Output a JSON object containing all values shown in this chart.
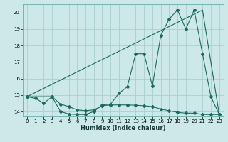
{
  "title": "",
  "xlabel": "Humidex (Indice chaleur)",
  "xlim": [
    -0.5,
    23.5
  ],
  "ylim": [
    13.7,
    20.5
  ],
  "yticks": [
    14,
    15,
    16,
    17,
    18,
    19,
    20
  ],
  "xticks": [
    0,
    1,
    2,
    3,
    4,
    5,
    6,
    7,
    8,
    9,
    10,
    11,
    12,
    13,
    14,
    15,
    16,
    17,
    18,
    19,
    20,
    21,
    22,
    23
  ],
  "bg_color": "#cce8e8",
  "grid_color": "#aacfcf",
  "line_color": "#1a6b5a",
  "series1_x": [
    0,
    1,
    2,
    3,
    4,
    5,
    6,
    7,
    8,
    9,
    10,
    11,
    12,
    13,
    14,
    15,
    16,
    17,
    18,
    19,
    20,
    21,
    22,
    23
  ],
  "series1_y": [
    14.9,
    14.8,
    14.5,
    14.9,
    14.0,
    13.85,
    13.82,
    13.82,
    14.0,
    14.4,
    14.45,
    15.1,
    15.5,
    17.5,
    17.5,
    15.55,
    18.6,
    19.6,
    20.15,
    19.0,
    20.15,
    17.5,
    14.9,
    13.82
  ],
  "series2_x": [
    0,
    21,
    23
  ],
  "series2_y": [
    14.9,
    20.15,
    13.82
  ],
  "series3_x": [
    0,
    3,
    4,
    5,
    6,
    7,
    8,
    9,
    10,
    11,
    12,
    13,
    14,
    15,
    16,
    17,
    18,
    19,
    20,
    21,
    22,
    23
  ],
  "series3_y": [
    14.9,
    14.9,
    14.45,
    14.3,
    14.1,
    14.05,
    14.1,
    14.35,
    14.4,
    14.4,
    14.4,
    14.38,
    14.35,
    14.3,
    14.15,
    14.05,
    13.95,
    13.9,
    13.9,
    13.82,
    13.82,
    13.82
  ]
}
